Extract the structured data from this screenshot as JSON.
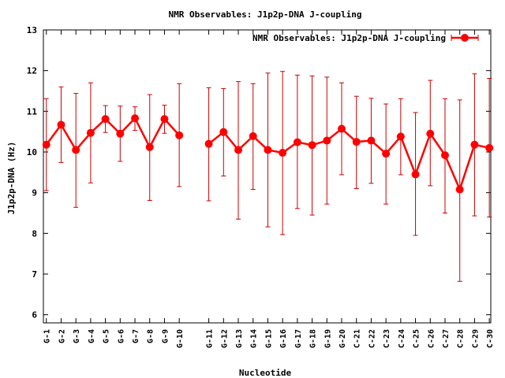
{
  "chart_data": {
    "type": "line",
    "title": "NMR Observables: J1p2p-DNA J-coupling",
    "xlabel": "Nucleotide",
    "ylabel": "J1p2p-DNA (Hz)",
    "ylim": [
      5.8,
      13
    ],
    "yticks": [
      6,
      7,
      8,
      9,
      10,
      11,
      12,
      13
    ],
    "grid": false,
    "legend_position": "top-right",
    "series_color": "#ff0000",
    "error_color": "#cc0000",
    "categories": [
      "G-1",
      "G-2",
      "G-3",
      "G-4",
      "G-5",
      "G-6",
      "G-7",
      "G-8",
      "G-9",
      "G-10",
      "G-11",
      "G-12",
      "G-13",
      "G-14",
      "G-15",
      "G-16",
      "G-17",
      "G-18",
      "G-19",
      "G-20",
      "C-21",
      "C-22",
      "C-23",
      "C-24",
      "C-25",
      "C-26",
      "C-27",
      "C-28",
      "C-29",
      "C-30"
    ],
    "x": [
      1,
      2,
      3,
      4,
      5,
      6,
      7,
      8,
      9,
      10,
      12,
      13,
      14,
      15,
      16,
      17,
      18,
      19,
      20,
      21,
      22,
      23,
      24,
      25,
      26,
      27,
      28,
      29,
      30,
      31
    ],
    "xlim": [
      0.8,
      31.1
    ],
    "series": [
      {
        "name": "NMR Observables: J1p2p-DNA J-coupling",
        "segments": [
          [
            0,
            9
          ],
          [
            10,
            29
          ]
        ],
        "values": [
          10.18,
          10.67,
          10.05,
          10.47,
          10.81,
          10.45,
          10.83,
          10.12,
          10.81,
          10.41,
          10.2,
          10.49,
          10.05,
          10.39,
          10.05,
          9.98,
          10.24,
          10.17,
          10.28,
          10.57,
          10.25,
          10.28,
          9.96,
          10.38,
          9.45,
          10.45,
          9.92,
          9.08,
          10.18,
          10.1
        ],
        "err_low": [
          9.05,
          9.74,
          8.64,
          9.24,
          10.48,
          9.77,
          10.53,
          8.81,
          10.46,
          9.15,
          8.8,
          9.41,
          8.35,
          9.08,
          8.16,
          7.97,
          8.61,
          8.45,
          8.72,
          9.44,
          9.1,
          9.23,
          8.72,
          9.44,
          7.95,
          9.17,
          8.5,
          6.82,
          8.43,
          8.4
        ],
        "err_high": [
          11.31,
          11.6,
          11.44,
          11.7,
          11.14,
          11.13,
          11.11,
          11.41,
          11.15,
          11.68,
          11.58,
          11.56,
          11.73,
          11.68,
          11.94,
          11.98,
          11.89,
          11.87,
          11.84,
          11.7,
          11.37,
          11.32,
          11.18,
          11.31,
          10.97,
          11.76,
          11.31,
          11.28,
          11.92,
          11.81
        ]
      }
    ]
  }
}
